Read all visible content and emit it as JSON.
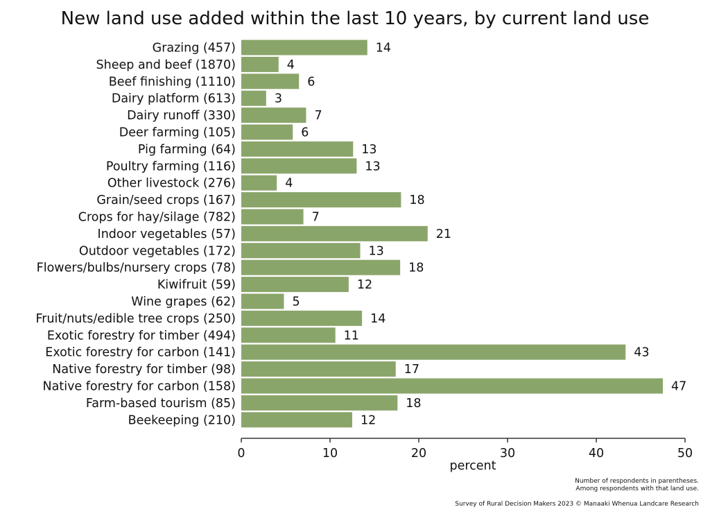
{
  "chart_data": {
    "type": "bar",
    "orientation": "horizontal",
    "title": "New land use added within the last 10 years, by current land use",
    "xlabel": "percent",
    "ylabel": "",
    "xlim": [
      0,
      50
    ],
    "xticks": [
      0,
      10,
      20,
      30,
      40,
      50
    ],
    "grid": false,
    "bar_color": "#8aa56a",
    "categories": [
      "Grazing (457)",
      "Sheep and beef (1870)",
      "Beef finishing (1110)",
      "Dairy platform (613)",
      "Dairy runoff (330)",
      "Deer farming (105)",
      "Pig farming (64)",
      "Poultry farming (116)",
      "Other livestock (276)",
      "Grain/seed crops (167)",
      "Crops for hay/silage (782)",
      "Indoor vegetables (57)",
      "Outdoor vegetables (172)",
      "Flowers/bulbs/nursery crops (78)",
      "Kiwifruit (59)",
      "Wine grapes (62)",
      "Fruit/nuts/edible tree crops (250)",
      "Exotic forestry for timber (494)",
      "Exotic forestry for carbon (141)",
      "Native forestry for timber (98)",
      "Native forestry for carbon (158)",
      "Farm-based tourism (85)",
      "Beekeeping (210)"
    ],
    "values": [
      14.2,
      4.2,
      6.5,
      2.8,
      7.3,
      5.8,
      12.6,
      13.0,
      4.0,
      18.0,
      7.0,
      21.0,
      13.4,
      17.9,
      12.1,
      4.8,
      13.6,
      10.6,
      43.3,
      17.4,
      47.5,
      17.6,
      12.5
    ],
    "data_labels": [
      "14",
      "4",
      "6",
      "3",
      "7",
      "6",
      "13",
      "13",
      "4",
      "18",
      "7",
      "21",
      "13",
      "18",
      "12",
      "5",
      "14",
      "11",
      "43",
      "17",
      "47",
      "18",
      "12"
    ]
  },
  "notes": {
    "line1": "Number of respondents in parentheses.",
    "line2": "Among respondents with that land use.",
    "source": "Survey of Rural Decision Makers 2023 © Manaaki Whenua Landcare Research"
  }
}
